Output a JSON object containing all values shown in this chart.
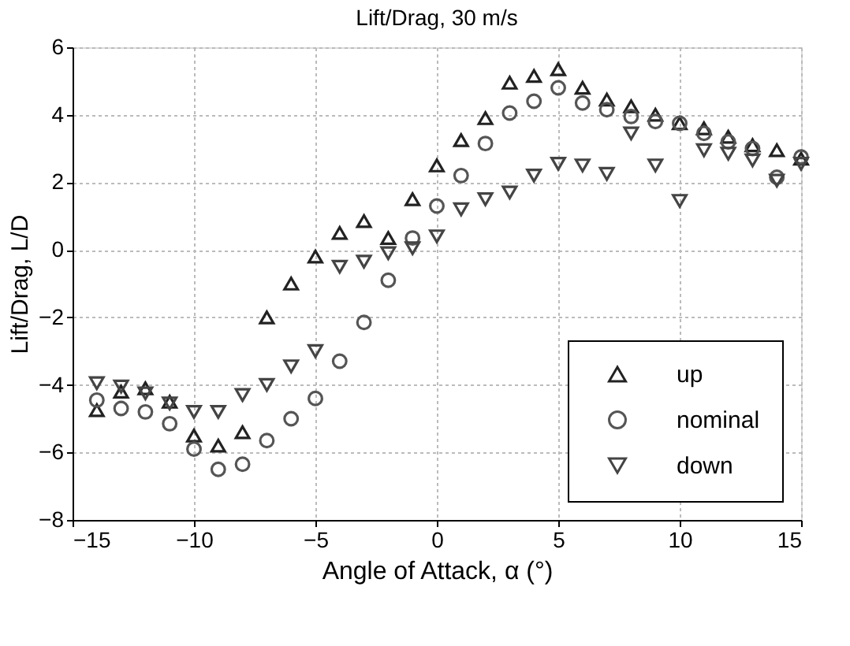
{
  "chart_data": {
    "type": "scatter",
    "title": "Lift/Drag, 30 m/s",
    "xlabel": "Angle of Attack, α (°)",
    "ylabel": "Lift/Drag, L/D",
    "x": [
      -14,
      -13,
      -12,
      -11,
      -10,
      -9,
      -8,
      -7,
      -6,
      -5,
      -4,
      -3,
      -2,
      -1,
      0,
      1,
      2,
      3,
      4,
      5,
      6,
      7,
      8,
      9,
      10,
      11,
      12,
      13,
      14,
      15
    ],
    "series": [
      {
        "name": "up",
        "color": "#222222",
        "marker": "triangle",
        "values": [
          -4.75,
          -4.2,
          -4.1,
          -4.5,
          -5.5,
          -5.8,
          -5.4,
          -2.0,
          -1.0,
          -0.2,
          0.5,
          0.85,
          0.35,
          1.5,
          2.5,
          3.25,
          3.9,
          4.95,
          5.15,
          5.35,
          4.8,
          4.45,
          4.25,
          4.0,
          3.75,
          3.6,
          3.35,
          3.1,
          2.95,
          2.7
        ]
      },
      {
        "name": "nominal",
        "color": "#555555",
        "marker": "circle",
        "values": [
          -4.45,
          -4.7,
          -4.8,
          -5.15,
          -5.9,
          -6.5,
          -6.35,
          -5.65,
          -5.0,
          -4.4,
          -3.3,
          -2.15,
          -0.9,
          0.35,
          1.3,
          2.2,
          3.15,
          4.05,
          4.4,
          4.8,
          4.35,
          4.15,
          3.95,
          3.8,
          3.75,
          3.45,
          3.2,
          3.0,
          2.15,
          2.75
        ]
      },
      {
        "name": "down",
        "color": "#444444",
        "marker": "triangle-down",
        "values": [
          -3.95,
          -4.05,
          -4.25,
          -4.55,
          -4.8,
          -4.8,
          -4.3,
          -4.0,
          -3.45,
          -3.0,
          -0.5,
          -0.35,
          -0.1,
          0.05,
          0.4,
          1.2,
          1.5,
          1.7,
          2.2,
          2.55,
          2.5,
          2.25,
          3.45,
          2.5,
          1.45,
          2.95,
          2.85,
          2.65,
          2.05,
          2.55
        ]
      }
    ],
    "xlim": [
      -15,
      15
    ],
    "xticks": [
      -15,
      -10,
      -5,
      0,
      5,
      10,
      15
    ],
    "ylim": [
      -8,
      6
    ],
    "yticks": [
      -8,
      -6,
      -4,
      -2,
      0,
      2,
      4,
      6
    ],
    "grid": true,
    "legend": "bottom right"
  }
}
